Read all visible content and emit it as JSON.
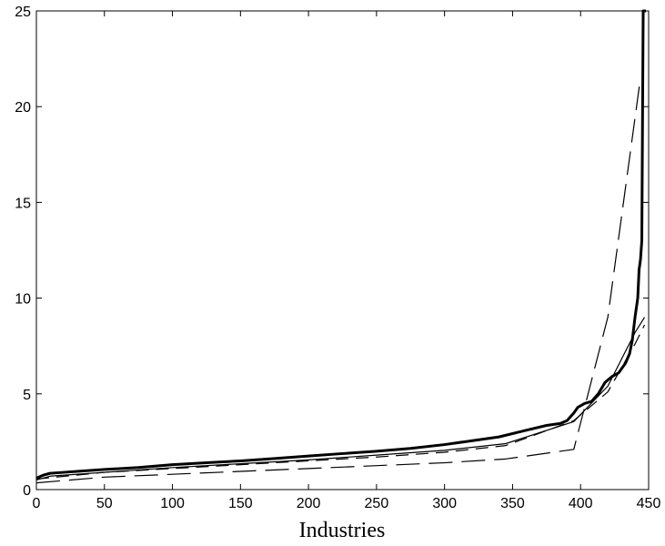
{
  "chart_data": {
    "type": "line",
    "title": "",
    "xlabel": "Industries",
    "ylabel": "",
    "xlim": [
      0,
      450
    ],
    "ylim": [
      0,
      25
    ],
    "xticks": [
      0,
      50,
      100,
      150,
      200,
      250,
      300,
      350,
      400,
      450
    ],
    "yticks": [
      0,
      5,
      10,
      15,
      20,
      25
    ],
    "grid": false,
    "series": [
      {
        "style": "thick-solid",
        "color": "#000000",
        "points": [
          [
            0,
            0.6
          ],
          [
            5,
            0.75
          ],
          [
            10,
            0.85
          ],
          [
            20,
            0.9
          ],
          [
            30,
            0.95
          ],
          [
            50,
            1.05
          ],
          [
            75,
            1.15
          ],
          [
            100,
            1.3
          ],
          [
            125,
            1.4
          ],
          [
            150,
            1.5
          ],
          [
            175,
            1.62
          ],
          [
            200,
            1.75
          ],
          [
            225,
            1.88
          ],
          [
            250,
            2.0
          ],
          [
            275,
            2.15
          ],
          [
            300,
            2.35
          ],
          [
            320,
            2.55
          ],
          [
            340,
            2.75
          ],
          [
            360,
            3.1
          ],
          [
            375,
            3.35
          ],
          [
            385,
            3.45
          ],
          [
            390,
            3.6
          ],
          [
            395,
            4.0
          ],
          [
            398,
            4.3
          ],
          [
            403,
            4.5
          ],
          [
            408,
            4.6
          ],
          [
            413,
            5.0
          ],
          [
            418,
            5.6
          ],
          [
            423,
            5.9
          ],
          [
            428,
            6.1
          ],
          [
            433,
            6.6
          ],
          [
            436,
            7.1
          ],
          [
            438,
            7.8
          ],
          [
            440,
            9.0
          ],
          [
            442,
            10.0
          ],
          [
            443,
            11.5
          ],
          [
            444,
            12.0
          ],
          [
            445,
            13.0
          ],
          [
            446,
            25.0
          ],
          [
            448,
            25.0
          ]
        ]
      },
      {
        "style": "thin-solid",
        "color": "#000000",
        "points": [
          [
            0,
            0.5
          ],
          [
            10,
            0.7
          ],
          [
            50,
            0.9
          ],
          [
            100,
            1.15
          ],
          [
            150,
            1.35
          ],
          [
            200,
            1.55
          ],
          [
            250,
            1.8
          ],
          [
            300,
            2.05
          ],
          [
            345,
            2.4
          ],
          [
            395,
            3.55
          ],
          [
            420,
            5.4
          ],
          [
            440,
            8.2
          ],
          [
            447,
            9.0
          ]
        ]
      },
      {
        "style": "long-dash",
        "color": "#000000",
        "points": [
          [
            0,
            0.35
          ],
          [
            50,
            0.65
          ],
          [
            100,
            0.8
          ],
          [
            150,
            0.95
          ],
          [
            200,
            1.1
          ],
          [
            250,
            1.25
          ],
          [
            300,
            1.4
          ],
          [
            345,
            1.6
          ],
          [
            395,
            2.1
          ],
          [
            420,
            9.0
          ],
          [
            444,
            21.5
          ]
        ]
      },
      {
        "style": "dash",
        "color": "#000000",
        "points": [
          [
            0,
            0.55
          ],
          [
            50,
            0.9
          ],
          [
            100,
            1.1
          ],
          [
            150,
            1.3
          ],
          [
            200,
            1.5
          ],
          [
            250,
            1.7
          ],
          [
            300,
            1.95
          ],
          [
            345,
            2.3
          ],
          [
            395,
            3.6
          ],
          [
            420,
            5.1
          ],
          [
            440,
            7.6
          ],
          [
            447,
            8.6
          ]
        ]
      }
    ]
  }
}
